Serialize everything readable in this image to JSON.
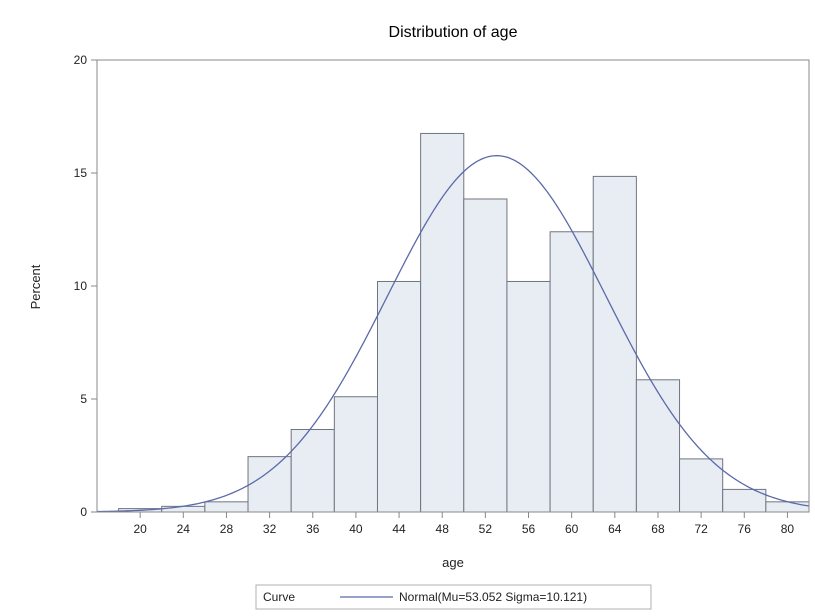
{
  "chart_data": {
    "type": "bar",
    "title": "Distribution of age",
    "xlabel": "age",
    "ylabel": "Percent",
    "xlim": [
      16,
      82
    ],
    "ylim": [
      0,
      20
    ],
    "x_ticks": [
      20,
      24,
      28,
      32,
      36,
      40,
      44,
      48,
      52,
      56,
      60,
      64,
      68,
      72,
      76,
      80
    ],
    "y_ticks": [
      0,
      5,
      10,
      15,
      20
    ],
    "bin_width": 4,
    "bins": [
      {
        "center": 20,
        "value": 0.15
      },
      {
        "center": 24,
        "value": 0.25
      },
      {
        "center": 28,
        "value": 0.45
      },
      {
        "center": 32,
        "value": 2.45
      },
      {
        "center": 36,
        "value": 3.65
      },
      {
        "center": 40,
        "value": 5.1
      },
      {
        "center": 44,
        "value": 10.2
      },
      {
        "center": 48,
        "value": 16.75
      },
      {
        "center": 52,
        "value": 13.85
      },
      {
        "center": 56,
        "value": 10.2
      },
      {
        "center": 60,
        "value": 12.4
      },
      {
        "center": 64,
        "value": 14.85
      },
      {
        "center": 68,
        "value": 5.85
      },
      {
        "center": 72,
        "value": 2.35
      },
      {
        "center": 76,
        "value": 1.0
      },
      {
        "center": 80,
        "value": 0.45
      }
    ],
    "curve": {
      "type": "normal",
      "mu": 53.052,
      "sigma": 10.121
    },
    "legend": {
      "position": "bottom",
      "title": "Curve",
      "entry": "Normal(Mu=53.052 Sigma=10.121)"
    },
    "colors": {
      "bar_fill": "#e8ecf3",
      "bar_stroke": "#6f7580",
      "curve": "#5b6aa8",
      "axis": "#888888"
    }
  }
}
